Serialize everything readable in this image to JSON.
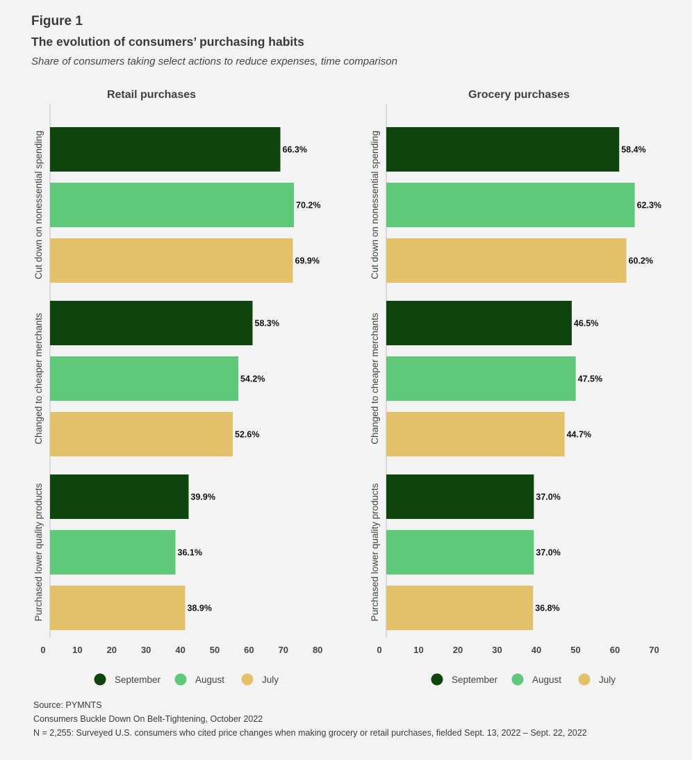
{
  "header": {
    "figure_label": "Figure 1",
    "title": "The evolution of consumers’ purchasing habits",
    "subtitle": "Share of consumers taking select actions to reduce expenses, time comparison"
  },
  "colors": {
    "September": "#0f440f",
    "August": "#5fc87a",
    "July": "#e3c16b",
    "background": "#f2f3f2",
    "axis": "#c8c8c8"
  },
  "chart_data": [
    {
      "type": "bar",
      "orientation": "horizontal",
      "title": "Retail purchases",
      "categories": [
        "Cut down on nonessential spending",
        "Changed to cheaper merchants",
        "Purchased lower quality products"
      ],
      "series": [
        {
          "name": "September",
          "values": [
            66.3,
            58.3,
            39.9
          ],
          "labels": [
            "66.3%",
            "58.3%",
            "39.9%"
          ]
        },
        {
          "name": "August",
          "values": [
            70.2,
            54.2,
            36.1
          ],
          "labels": [
            "70.2%",
            "54.2%",
            "36.1%"
          ]
        },
        {
          "name": "July",
          "values": [
            69.9,
            52.6,
            38.9
          ],
          "labels": [
            "69.9%",
            "52.6%",
            "38.9%"
          ]
        }
      ],
      "xlim": [
        0,
        80
      ],
      "xticks": [
        "0",
        "10",
        "20",
        "30",
        "40",
        "50",
        "60",
        "70",
        "80"
      ],
      "grid": false,
      "legend": "bottom-center",
      "legend_entries": [
        "September",
        "August",
        "July"
      ]
    },
    {
      "type": "bar",
      "orientation": "horizontal",
      "title": "Grocery purchases",
      "categories": [
        "Cut down on nonessential spending",
        "Changed to cheaper merchants",
        "Purchased lower quality products"
      ],
      "series": [
        {
          "name": "September",
          "values": [
            58.4,
            46.5,
            37.0
          ],
          "labels": [
            "58.4%",
            "46.5%",
            "37.0%"
          ]
        },
        {
          "name": "August",
          "values": [
            62.3,
            47.5,
            37.0
          ],
          "labels": [
            "62.3%",
            "47.5%",
            "37.0%"
          ]
        },
        {
          "name": "July",
          "values": [
            60.2,
            44.7,
            36.8
          ],
          "labels": [
            "60.2%",
            "44.7%",
            "36.8%"
          ]
        }
      ],
      "xlim": [
        0,
        70
      ],
      "xticks": [
        "0",
        "10",
        "20",
        "30",
        "40",
        "50",
        "60",
        "70"
      ],
      "grid": false,
      "legend": "bottom-center",
      "legend_entries": [
        "September",
        "August",
        "July"
      ]
    }
  ],
  "footer": {
    "source": "Source: PYMNTS",
    "report": "Consumers Buckle Down On Belt-Tightening, October 2022",
    "note": "N = 2,255: Surveyed U.S. consumers who cited price changes when making grocery or retail purchases, fielded Sept. 13, 2022 – Sept. 22, 2022"
  }
}
